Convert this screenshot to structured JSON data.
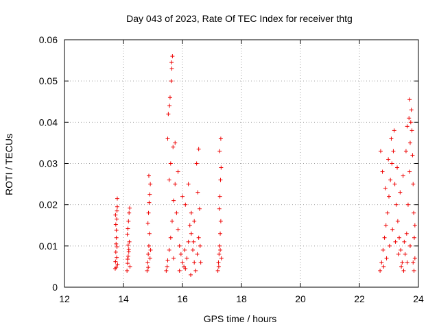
{
  "chart_data": {
    "type": "scatter",
    "title": "Day 043 of 2023, Rate Of TEC Index for receiver thtg",
    "xlabel": "GPS time / hours",
    "ylabel": "ROTI / TECUs",
    "xlim": [
      12,
      24
    ],
    "ylim": [
      0,
      0.06
    ],
    "x_ticks": [
      12,
      14,
      16,
      18,
      20,
      22,
      24
    ],
    "x_tick_labels": [
      "12",
      "14",
      "16",
      "18",
      "20",
      "22",
      "24"
    ],
    "y_ticks": [
      0,
      0.01,
      0.02,
      0.03,
      0.04,
      0.05,
      0.06
    ],
    "y_tick_labels": [
      "0",
      "0.01",
      "0.02",
      "0.03",
      "0.04",
      "0.05",
      "0.06"
    ],
    "grid": true,
    "marker": "plus",
    "color": "#ee0000",
    "series": [
      {
        "values": [
          [
            13.72,
            0.0045
          ],
          [
            13.73,
            0.0062
          ],
          [
            13.74,
            0.0085
          ],
          [
            13.75,
            0.0105
          ],
          [
            13.76,
            0.0138
          ],
          [
            13.77,
            0.0165
          ],
          [
            13.78,
            0.0185
          ],
          [
            13.79,
            0.0215
          ],
          [
            13.75,
            0.0048
          ],
          [
            13.77,
            0.0072
          ],
          [
            13.78,
            0.0098
          ],
          [
            13.76,
            0.012
          ],
          [
            13.74,
            0.0152
          ],
          [
            13.73,
            0.0175
          ],
          [
            13.79,
            0.0195
          ],
          [
            13.8,
            0.0055
          ],
          [
            14.12,
            0.004
          ],
          [
            14.14,
            0.0058
          ],
          [
            14.16,
            0.0075
          ],
          [
            14.18,
            0.0092
          ],
          [
            14.2,
            0.011
          ],
          [
            14.13,
            0.0128
          ],
          [
            14.15,
            0.0142
          ],
          [
            14.17,
            0.016
          ],
          [
            14.19,
            0.018
          ],
          [
            14.21,
            0.0192
          ],
          [
            14.14,
            0.0068
          ],
          [
            14.18,
            0.0086
          ],
          [
            14.22,
            0.005
          ],
          [
            14.16,
            0.0102
          ],
          [
            14.8,
            0.004
          ],
          [
            14.82,
            0.006
          ],
          [
            14.84,
            0.008
          ],
          [
            14.86,
            0.01
          ],
          [
            14.88,
            0.013
          ],
          [
            14.83,
            0.0155
          ],
          [
            14.85,
            0.018
          ],
          [
            14.87,
            0.0205
          ],
          [
            14.89,
            0.0225
          ],
          [
            14.91,
            0.025
          ],
          [
            14.86,
            0.027
          ],
          [
            14.84,
            0.0048
          ],
          [
            14.9,
            0.007
          ],
          [
            14.92,
            0.009
          ],
          [
            15.45,
            0.004
          ],
          [
            15.5,
            0.0065
          ],
          [
            15.55,
            0.009
          ],
          [
            15.6,
            0.012
          ],
          [
            15.65,
            0.016
          ],
          [
            15.7,
            0.021
          ],
          [
            15.55,
            0.026
          ],
          [
            15.6,
            0.03
          ],
          [
            15.5,
            0.036
          ],
          [
            15.52,
            0.042
          ],
          [
            15.58,
            0.046
          ],
          [
            15.62,
            0.05
          ],
          [
            15.64,
            0.053
          ],
          [
            15.66,
            0.056
          ],
          [
            15.63,
            0.0545
          ],
          [
            15.56,
            0.044
          ],
          [
            15.68,
            0.034
          ],
          [
            15.75,
            0.025
          ],
          [
            15.8,
            0.018
          ],
          [
            15.85,
            0.014
          ],
          [
            15.9,
            0.01
          ],
          [
            15.95,
            0.008
          ],
          [
            16.0,
            0.006
          ],
          [
            16.05,
            0.005
          ],
          [
            16.1,
            0.0045
          ],
          [
            16.15,
            0.007
          ],
          [
            16.2,
            0.011
          ],
          [
            16.25,
            0.015
          ],
          [
            16.3,
            0.013
          ],
          [
            16.35,
            0.009
          ],
          [
            16.4,
            0.006
          ],
          [
            16.45,
            0.004
          ],
          [
            16.5,
            0.008
          ],
          [
            16.55,
            0.012
          ],
          [
            16.58,
            0.019
          ],
          [
            16.52,
            0.023
          ],
          [
            16.6,
            0.01
          ],
          [
            16.62,
            0.006
          ],
          [
            16.48,
            0.03
          ],
          [
            16.55,
            0.0335
          ],
          [
            15.75,
            0.035
          ],
          [
            15.85,
            0.028
          ],
          [
            16.0,
            0.022
          ],
          [
            16.1,
            0.02
          ],
          [
            16.2,
            0.025
          ],
          [
            16.3,
            0.018
          ],
          [
            16.4,
            0.016
          ],
          [
            15.48,
            0.005
          ],
          [
            15.7,
            0.007
          ],
          [
            15.9,
            0.004
          ],
          [
            16.08,
            0.009
          ],
          [
            16.28,
            0.003
          ],
          [
            16.38,
            0.011
          ],
          [
            17.2,
            0.004
          ],
          [
            17.22,
            0.006
          ],
          [
            17.24,
            0.008
          ],
          [
            17.26,
            0.01
          ],
          [
            17.28,
            0.013
          ],
          [
            17.3,
            0.016
          ],
          [
            17.25,
            0.019
          ],
          [
            17.27,
            0.022
          ],
          [
            17.29,
            0.026
          ],
          [
            17.31,
            0.029
          ],
          [
            17.26,
            0.033
          ],
          [
            17.3,
            0.036
          ],
          [
            17.23,
            0.005
          ],
          [
            17.32,
            0.007
          ],
          [
            17.28,
            0.009
          ],
          [
            22.7,
            0.004
          ],
          [
            22.75,
            0.006
          ],
          [
            22.8,
            0.009
          ],
          [
            22.85,
            0.012
          ],
          [
            22.9,
            0.015
          ],
          [
            22.95,
            0.018
          ],
          [
            23.0,
            0.022
          ],
          [
            23.05,
            0.026
          ],
          [
            23.1,
            0.03
          ],
          [
            23.15,
            0.033
          ],
          [
            23.2,
            0.025
          ],
          [
            23.25,
            0.02
          ],
          [
            23.3,
            0.016
          ],
          [
            23.35,
            0.012
          ],
          [
            23.4,
            0.009
          ],
          [
            23.45,
            0.006
          ],
          [
            23.5,
            0.004
          ],
          [
            23.55,
            0.008
          ],
          [
            23.6,
            0.013
          ],
          [
            23.65,
            0.02
          ],
          [
            23.7,
            0.028
          ],
          [
            23.72,
            0.035
          ],
          [
            23.74,
            0.04
          ],
          [
            23.76,
            0.043
          ],
          [
            23.7,
            0.0455
          ],
          [
            23.78,
            0.038
          ],
          [
            23.8,
            0.032
          ],
          [
            23.82,
            0.025
          ],
          [
            23.84,
            0.018
          ],
          [
            23.86,
            0.012
          ],
          [
            23.88,
            0.007
          ],
          [
            23.85,
            0.004
          ],
          [
            22.72,
            0.033
          ],
          [
            22.78,
            0.028
          ],
          [
            22.88,
            0.024
          ],
          [
            22.98,
            0.031
          ],
          [
            23.08,
            0.036
          ],
          [
            23.18,
            0.038
          ],
          [
            23.28,
            0.029
          ],
          [
            23.38,
            0.023
          ],
          [
            23.48,
            0.027
          ],
          [
            23.58,
            0.033
          ],
          [
            23.62,
            0.039
          ],
          [
            23.68,
            0.041
          ],
          [
            22.82,
            0.005
          ],
          [
            22.92,
            0.007
          ],
          [
            23.02,
            0.01
          ],
          [
            23.12,
            0.014
          ],
          [
            23.22,
            0.011
          ],
          [
            23.32,
            0.008
          ],
          [
            23.42,
            0.005
          ],
          [
            23.52,
            0.011
          ],
          [
            23.62,
            0.006
          ],
          [
            23.72,
            0.01
          ],
          [
            23.82,
            0.006
          ],
          [
            23.88,
            0.015
          ]
        ]
      }
    ]
  }
}
